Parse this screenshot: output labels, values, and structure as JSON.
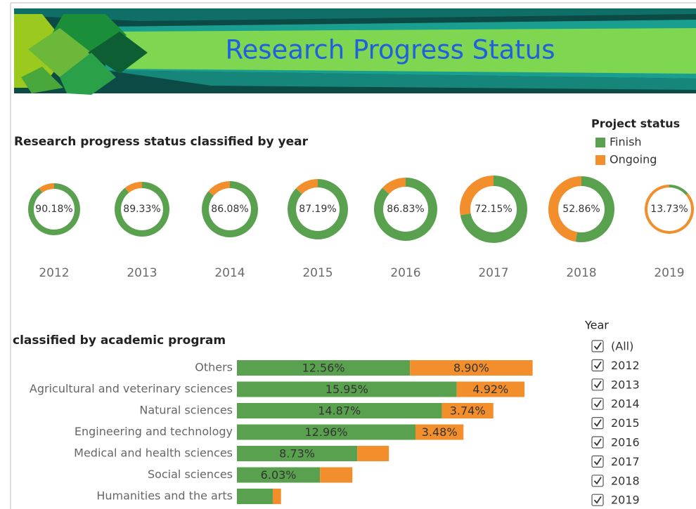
{
  "header": {
    "title": "Research Progress Status"
  },
  "chart_data": [
    {
      "type": "donut",
      "title": "Research progress status classified by year",
      "legend_title": "Project status",
      "categories": [
        "2012",
        "2013",
        "2014",
        "2015",
        "2016",
        "2017",
        "2018",
        "2019"
      ],
      "series": [
        {
          "name": "Finish",
          "color": "#59a14f",
          "values": [
            90.18,
            89.33,
            86.08,
            87.19,
            86.83,
            72.15,
            52.86,
            13.73
          ],
          "value_labels": [
            "90.18%",
            "89.33%",
            "86.08%",
            "87.19%",
            "86.83%",
            "72.15%",
            "52.86%",
            "13.73%"
          ]
        },
        {
          "name": "Ongoing",
          "color": "#f28e2b",
          "values": [
            9.82,
            10.67,
            13.92,
            12.81,
            13.17,
            27.85,
            47.14,
            86.27
          ]
        }
      ]
    },
    {
      "type": "stacked_bar",
      "title": "classified by academic program",
      "categories": [
        "Others",
        "Agricultural and veterinary sciences",
        "Natural sciences",
        "Engineering and technology",
        "Medical and health sciences",
        "Social sciences",
        "Humanities and the arts"
      ],
      "series": [
        {
          "color": "#59a14f",
          "values": [
            12.56,
            15.95,
            14.87,
            12.96,
            8.73,
            6.03,
            2.6
          ],
          "value_labels": [
            "12.56%",
            "15.95%",
            "14.87%",
            "12.96%",
            "8.73%",
            "6.03%",
            null
          ]
        },
        {
          "color": "#f28e2b",
          "values": [
            8.9,
            4.92,
            3.74,
            3.48,
            2.3,
            2.35,
            0.6
          ],
          "value_labels": [
            "8.90%",
            "4.92%",
            "3.74%",
            "3.48%",
            null,
            null,
            null
          ]
        }
      ]
    }
  ],
  "filter": {
    "title": "Year",
    "options": [
      "(All)",
      "2012",
      "2013",
      "2014",
      "2015",
      "2016",
      "2017",
      "2018",
      "2019"
    ],
    "checked": [
      true,
      true,
      true,
      true,
      true,
      true,
      true,
      true,
      true
    ]
  }
}
